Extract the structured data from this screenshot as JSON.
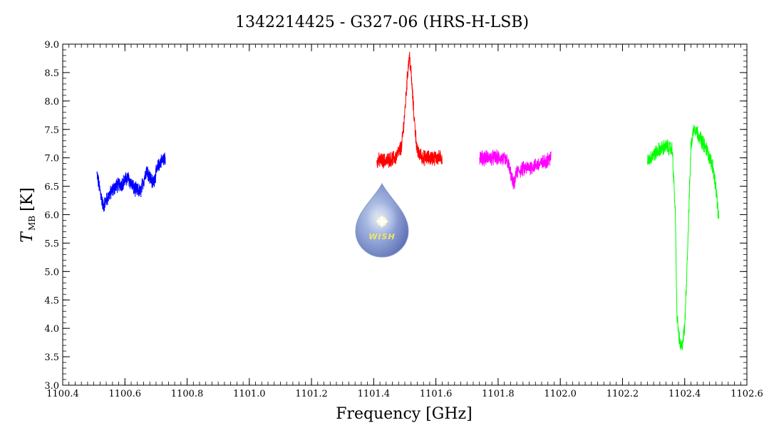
{
  "chart_data": {
    "type": "line",
    "title": "1342214425 - G327-06 (HRS-H-LSB)",
    "xlabel": "Frequency [GHz]",
    "ylabel_main": "T",
    "ylabel_sub": "MB",
    "ylabel_unit": "[K]",
    "xlim": [
      1100.4,
      1102.6
    ],
    "ylim": [
      3.0,
      9.0
    ],
    "xticks": [
      "1100.4",
      "1100.6",
      "1100.8",
      "1101.0",
      "1101.2",
      "1101.4",
      "1101.6",
      "1101.8",
      "1102.0",
      "1102.2",
      "1102.4",
      "1102.6"
    ],
    "yticks": [
      "3.0",
      "3.5",
      "4.0",
      "4.5",
      "5.0",
      "5.5",
      "6.0",
      "6.5",
      "7.0",
      "7.5",
      "8.0",
      "8.5",
      "9.0"
    ],
    "grid": false,
    "logo_text": "WISH",
    "series": [
      {
        "color": "#0000ff",
        "x": [
          1100.51,
          1100.53,
          1100.55,
          1100.57,
          1100.59,
          1100.61,
          1100.63,
          1100.65,
          1100.67,
          1100.69,
          1100.71,
          1100.73
        ],
        "y": [
          6.7,
          6.15,
          6.35,
          6.5,
          6.55,
          6.65,
          6.45,
          6.4,
          6.8,
          6.55,
          6.9,
          7.0
        ]
      },
      {
        "color": "#ff0000",
        "x": [
          1101.41,
          1101.44,
          1101.47,
          1101.49,
          1101.5,
          1101.51,
          1101.515,
          1101.52,
          1101.53,
          1101.54,
          1101.56,
          1101.59,
          1101.62
        ],
        "y": [
          6.95,
          6.95,
          7.0,
          7.2,
          7.8,
          8.55,
          8.8,
          8.5,
          7.7,
          7.1,
          7.0,
          7.0,
          7.0
        ]
      },
      {
        "color": "#ff00ff",
        "x": [
          1101.74,
          1101.77,
          1101.8,
          1101.83,
          1101.85,
          1101.86,
          1101.88,
          1101.91,
          1101.94,
          1101.97
        ],
        "y": [
          7.0,
          7.0,
          7.0,
          6.95,
          6.5,
          6.75,
          6.8,
          6.85,
          6.9,
          7.0
        ]
      },
      {
        "color": "#00ff00",
        "x": [
          1102.28,
          1102.3,
          1102.32,
          1102.34,
          1102.36,
          1102.37,
          1102.375,
          1102.385,
          1102.39,
          1102.4,
          1102.41,
          1102.42,
          1102.43,
          1102.45,
          1102.47,
          1102.49,
          1102.5,
          1102.51
        ],
        "y": [
          6.95,
          7.05,
          7.15,
          7.2,
          7.15,
          6.0,
          4.2,
          3.7,
          3.65,
          4.0,
          5.5,
          7.2,
          7.55,
          7.35,
          7.15,
          6.85,
          6.5,
          5.9
        ]
      }
    ]
  }
}
